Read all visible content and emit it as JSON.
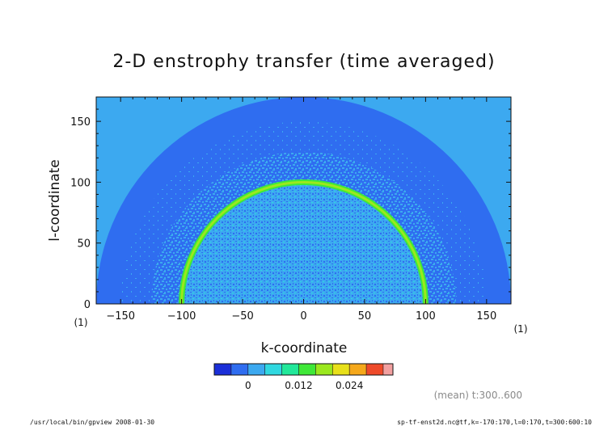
{
  "chart_data": {
    "type": "heatmap",
    "title": "2-D enstrophy transfer (time averaged)",
    "xlabel": "k-coordinate",
    "ylabel": "l-coordinate",
    "x_unit": "(1)",
    "y_unit": "(1)",
    "xlim": [
      -170,
      170
    ],
    "ylim": [
      0,
      170
    ],
    "xticks": [
      -150,
      -100,
      -50,
      0,
      50,
      100,
      150
    ],
    "yticks": [
      0,
      50,
      100,
      150
    ],
    "domain_radius": 170,
    "ring": {
      "center_k": 0,
      "center_l": 0,
      "radius": 100,
      "width": 6,
      "value": 0.012
    },
    "region_values": {
      "outside_domain": 0.0,
      "inner_disk_mean": 0.0,
      "outer_annulus_mean": -0.003,
      "ring_peak": 0.015
    },
    "colorbar": {
      "levels": [
        -0.008,
        -0.004,
        0,
        0.004,
        0.008,
        0.012,
        0.016,
        0.02,
        0.024,
        0.028,
        0.03
      ],
      "colors": [
        "#1b2fd8",
        "#2f6df0",
        "#3ca9f0",
        "#30d8e0",
        "#22e89a",
        "#3fe838",
        "#9be81e",
        "#e8e01a",
        "#f5a81b",
        "#ee4a2a",
        "#f2a0a0"
      ],
      "tick_labels": [
        "0",
        "0.012",
        "0.024"
      ],
      "tick_values": [
        0,
        0.012,
        0.024
      ]
    },
    "annotation": "(mean) t:300..600"
  },
  "footer": {
    "left": "/usr/local/bin/gpview  2008-01-30",
    "right": "sp-tf-enst2d.nc@tf,k=-170:170,l=0:170,t=300:600:10"
  }
}
